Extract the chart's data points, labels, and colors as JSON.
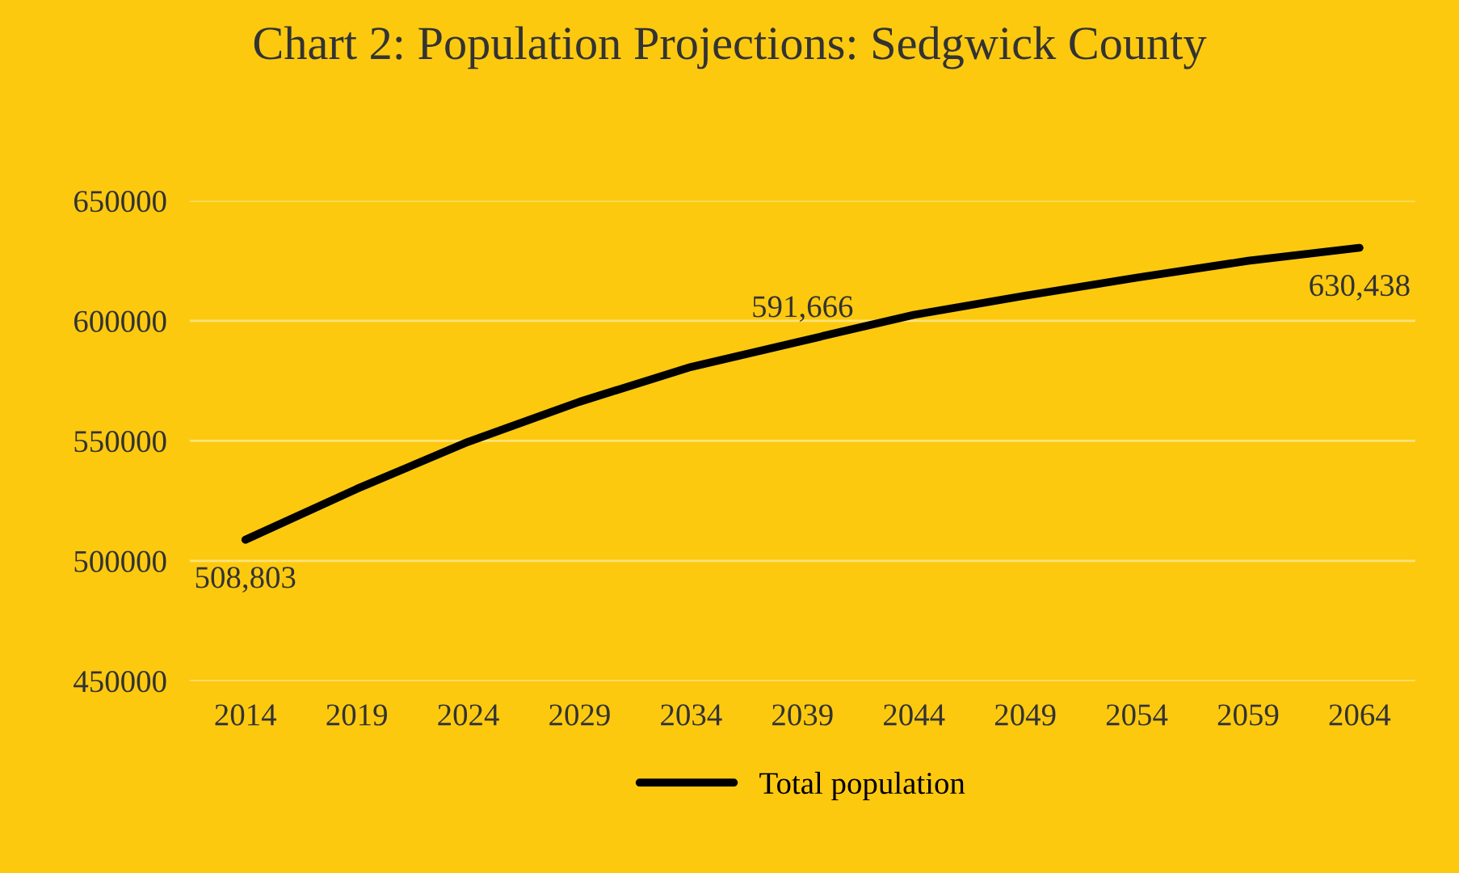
{
  "chart_data": {
    "type": "line",
    "title": "Chart 2: Population Projections: Sedgwick County",
    "categories": [
      "2014",
      "2019",
      "2024",
      "2029",
      "2034",
      "2039",
      "2044",
      "2049",
      "2054",
      "2059",
      "2064"
    ],
    "series": [
      {
        "name": "Total population",
        "color": "#000000",
        "values": [
          508803,
          530000,
          549600,
          566300,
          580800,
          591666,
          602500,
          610500,
          618000,
          625000,
          630438
        ],
        "value_labels": [
          "508,803",
          null,
          null,
          null,
          null,
          "591,666",
          null,
          null,
          null,
          null,
          "630,438"
        ]
      }
    ],
    "ylim": [
      450000,
      650000
    ],
    "yticks": [
      450000,
      500000,
      550000,
      600000,
      650000
    ],
    "grid": "y",
    "legend": "bottom",
    "marker": "none",
    "line_style": "solid"
  }
}
